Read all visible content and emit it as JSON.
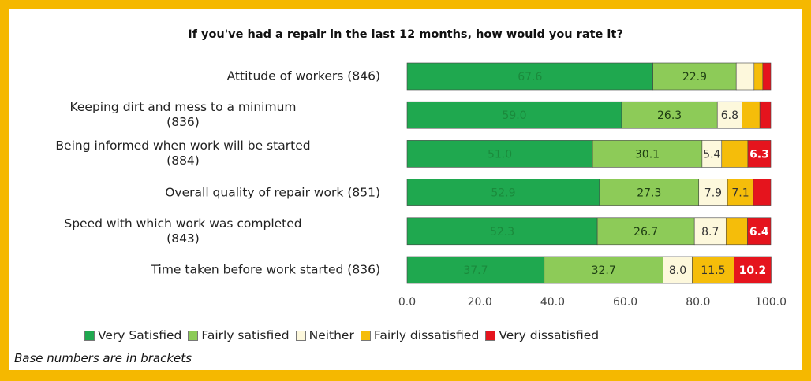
{
  "chart_data": {
    "type": "bar",
    "orientation": "horizontal",
    "stacked": true,
    "title": "If you've had a repair in the last 12 months, how would you rate it?",
    "categories": [
      "Attitude of workers (846)",
      "Keeping dirt and mess to a minimum\n(836)",
      "Being informed when work will be started\n(884)",
      "Overall quality of repair work (851)",
      "Speed with which work was completed\n(843)",
      "Time taken before work started (836)"
    ],
    "series": [
      {
        "name": "Very Satisfied",
        "color": "#1fa84f",
        "values": [
          67.6,
          59.0,
          51.0,
          52.9,
          52.3,
          37.7
        ],
        "value_labels": [
          "67.6",
          "59.0",
          "51.0",
          "52.9",
          "52.3",
          "37.7"
        ]
      },
      {
        "name": "Fairly satisfied",
        "color": "#8dcb58",
        "values": [
          22.9,
          26.3,
          30.1,
          27.3,
          26.7,
          32.7
        ],
        "value_labels": [
          "22.9",
          "26.3",
          "30.1",
          "27.3",
          "26.7",
          "32.7"
        ]
      },
      {
        "name": "Neither",
        "color": "#fdf8dc",
        "values": [
          4.9,
          6.8,
          5.4,
          7.9,
          8.7,
          8.0
        ],
        "value_labels": [
          null,
          "6.8",
          "5.4",
          "7.9",
          "8.7",
          "8.0"
        ]
      },
      {
        "name": "Fairly dissatisfied",
        "color": "#f5bd0a",
        "values": [
          2.4,
          4.9,
          7.2,
          7.1,
          5.9,
          11.5
        ],
        "value_labels": [
          null,
          null,
          null,
          "7.1",
          null,
          "11.5"
        ]
      },
      {
        "name": "Very dissatisfied",
        "color": "#e5141d",
        "values": [
          2.2,
          3.0,
          6.3,
          4.8,
          6.4,
          10.2
        ],
        "value_labels": [
          null,
          null,
          "6.3",
          null,
          "6.4",
          "10.2"
        ]
      }
    ],
    "xlim": [
      0,
      100
    ],
    "xticks": [
      {
        "value": 0,
        "label": "0.0"
      },
      {
        "value": 20,
        "label": "20.0"
      },
      {
        "value": 40,
        "label": "40.0"
      },
      {
        "value": 60,
        "label": "60.0"
      },
      {
        "value": 80,
        "label": "80.0"
      },
      {
        "value": 100,
        "label": "100.0"
      }
    ],
    "legend": "bottom",
    "note": "Base numbers are in brackets"
  }
}
